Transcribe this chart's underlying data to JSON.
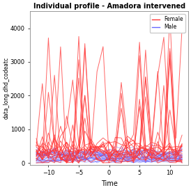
{
  "title": "Individual profile - Amadora intervened",
  "xlabel": "Time",
  "ylabel": "data_long.dhd_codeatc",
  "xlim": [
    -13,
    13
  ],
  "ylim": [
    -50,
    4500
  ],
  "xticks": [
    -10,
    -5,
    0,
    5,
    10
  ],
  "yticks": [
    0,
    1000,
    2000,
    3000,
    4000
  ],
  "female_color": "#FF3333",
  "male_color": "#6666FF",
  "background_color": "#FFFFFF",
  "plot_bg_color": "#FFFFFF",
  "n_female": 18,
  "n_male": 30,
  "x_range": [
    -12,
    12
  ],
  "n_timepoints": 25,
  "seed": 7
}
